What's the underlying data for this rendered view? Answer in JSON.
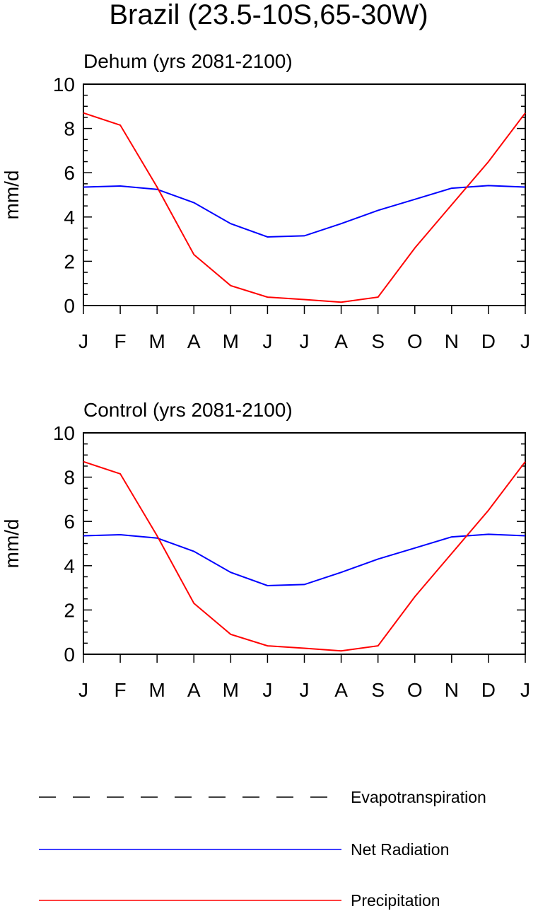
{
  "figure": {
    "title": "Brazil (23.5-10S,65-30W)"
  },
  "legend": {
    "placement": "bottom",
    "items": [
      {
        "name": "Evapotranspiration",
        "color": "#000000",
        "style": "dashed"
      },
      {
        "name": "Net Radiation",
        "color": "#0000ff",
        "style": "solid"
      },
      {
        "name": "Precipitation",
        "color": "#ff0000",
        "style": "solid"
      }
    ]
  },
  "chart_data": [
    {
      "type": "line",
      "title": "Dehum (yrs 2081-2100)",
      "xlabel": "",
      "ylabel": "mm/d",
      "ylim": [
        0,
        10
      ],
      "yticks": [
        "0",
        "2",
        "4",
        "6",
        "8",
        "10"
      ],
      "categories": [
        "J",
        "F",
        "M",
        "A",
        "M",
        "J",
        "J",
        "A",
        "S",
        "O",
        "N",
        "D",
        "J"
      ],
      "grid": false,
      "series": [
        {
          "name": "Net Radiation",
          "color": "#0000ff",
          "values": [
            5.35,
            5.4,
            5.25,
            4.65,
            3.7,
            3.1,
            3.15,
            3.7,
            4.3,
            4.8,
            5.3,
            5.42,
            5.35
          ]
        },
        {
          "name": "Precipitation",
          "color": "#ff0000",
          "values": [
            8.7,
            8.15,
            5.35,
            2.3,
            0.9,
            0.38,
            0.27,
            0.15,
            0.38,
            2.6,
            4.55,
            6.5,
            8.7
          ]
        }
      ]
    },
    {
      "type": "line",
      "title": "Control (yrs 2081-2100)",
      "xlabel": "",
      "ylabel": "mm/d",
      "ylim": [
        0,
        10
      ],
      "yticks": [
        "0",
        "2",
        "4",
        "6",
        "8",
        "10"
      ],
      "categories": [
        "J",
        "F",
        "M",
        "A",
        "M",
        "J",
        "J",
        "A",
        "S",
        "O",
        "N",
        "D",
        "J"
      ],
      "grid": false,
      "series": [
        {
          "name": "Net Radiation",
          "color": "#0000ff",
          "values": [
            5.35,
            5.4,
            5.25,
            4.65,
            3.7,
            3.1,
            3.15,
            3.7,
            4.3,
            4.8,
            5.3,
            5.42,
            5.35
          ]
        },
        {
          "name": "Precipitation",
          "color": "#ff0000",
          "values": [
            8.7,
            8.15,
            5.35,
            2.3,
            0.9,
            0.38,
            0.27,
            0.15,
            0.38,
            2.6,
            4.55,
            6.5,
            8.7
          ]
        }
      ]
    }
  ]
}
